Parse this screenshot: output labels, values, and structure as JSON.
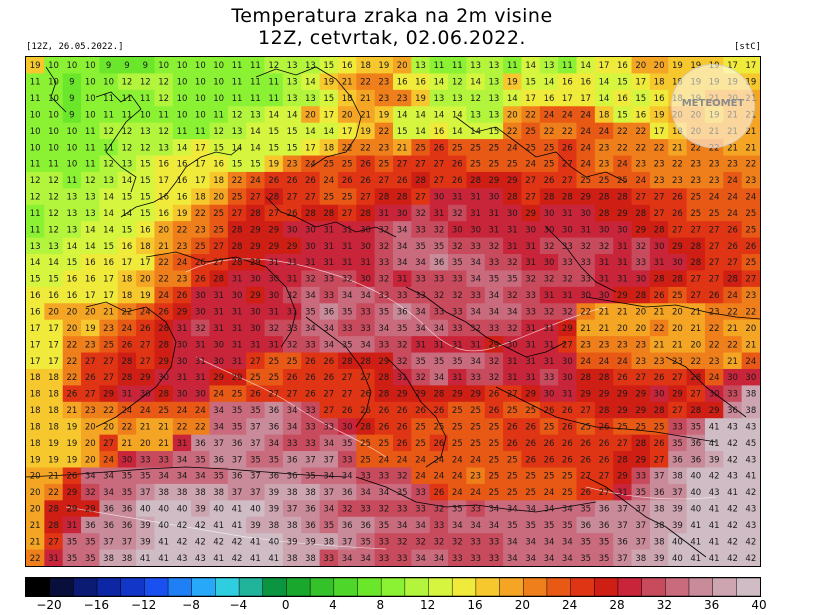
{
  "header": {
    "title_line1": "Temperatura zraka na 2m visine",
    "title_line2": "12Z, cetvrtak, 02.06.2022.",
    "run_label": "[12Z, 26.05.2022.]",
    "unit_label": "[stC]"
  },
  "watermark": {
    "text": "METEOMET"
  },
  "colorbar": {
    "colors": [
      "#000000",
      "#080f3a",
      "#0b1b73",
      "#0d27a4",
      "#1136c8",
      "#1a4ff0",
      "#1f7ff5",
      "#27a8f8",
      "#2fcde0",
      "#22b39b",
      "#0c9540",
      "#19a72d",
      "#35c12a",
      "#4fd62a",
      "#6ae72a",
      "#8bf233",
      "#b3f53d",
      "#d5f53f",
      "#f0ea3a",
      "#f7c72e",
      "#f5a524",
      "#ef7f1a",
      "#e85915",
      "#e03514",
      "#cf1e14",
      "#c9253a",
      "#c84a5d",
      "#c96a7d",
      "#c98a99",
      "#cca5b1",
      "#cfbcc4"
    ],
    "tick_labels": [
      "−20",
      "−16",
      "−12",
      "−8",
      "−4",
      "0",
      "4",
      "8",
      "12",
      "16",
      "20",
      "24",
      "28",
      "32",
      "36",
      "40"
    ]
  },
  "map_grid": {
    "rows": [
      "19 10 10 10 9 9 9 10 10 10 10 11 11 12 13 13 15 16 18 19 20 13 11 11 13 13 11 14 13 11 14 17 16 20 20 19 19 19 17 17",
      "11 10 9 10 10 12 12 12 10 10 10 11 11 11 13 14 19 21 22 23 16 16 14 12 14 13 19 15 14 16 16 14 15 17 18 18 19 19 19 19",
      "11 10 9 10 11 11 11 12 10 10 10 11 11 11 13 13 15 18 21 23 23 19 13 13 12 13 14 17 16 17 17 14 16 15 16 18 19 21 20 21",
      "10 10 9 10 11 11 10 11 10 10 11 12 13 14 14 20 17 20 21 19 14 14 14 14 13 13 20 22 24 24 24 18 15 16 19 20 20 19 21 21",
      "10 10 10 11 12 12 13 12 11 11 12 13 14 15 15 14 14 17 19 22 15 14 16 14 14 15 22 25 22 22 24 24 22 22 17 18 20 21 21 21",
      "10 10 10 11 11 12 12 13 14 17 15 14 14 15 15 17 18 22 22 23 21 25 26 25 25 25 24 25 25 26 24 23 22 22 22 21 22 22 21 21",
      "11 11 10 11 12 13 15 16 16 17 16 15 15 19 23 24 25 25 26 25 27 27 27 26 25 25 25 24 25 27 24 23 24 23 23 22 23 23 23 22",
      "12 12 11 12 13 14 15 17 16 17 18 22 24 26 26 26 24 26 26 27 26 28 27 26 28 29 29 27 26 27 25 25 25 24 23 23 23 23 24 23",
      "12 12 13 13 14 15 15 16 16 18 20 25 27 28 27 27 25 25 27 28 28 27 30 31 31 30 28 27 28 28 29 28 28 27 27 26 25 24 24 24",
      "11 12 13 13 14 14 15 16 19 22 25 27 28 27 26 28 28 27 28 31 30 32 31 32 31 31 30 29 30 31 30 28 29 28 27 26 25 25 24 25",
      "11 12 13 14 14 15 16 20 22 23 25 28 29 29 30 30 31 31 30 32 34 33 32 30 30 31 31 30 30 30 31 30 30 29 28 27 27 27 26 25",
      "13 13 14 14 15 16 18 21 23 25 27 28 29 29 29 30 31 31 30 32 34 35 35 32 33 32 31 31 32 33 32 32 31 32 30 29 28 27 26 26",
      "14 14 15 16 16 17 17 22 24 26 27 28 29 31 31 31 31 31 31 33 34 34 36 35 34 33 32 31 30 33 33 31 31 33 31 30 28 27 27 25",
      "15 15 16 16 17 18 20 22 23 26 28 31 30 30 31 32 33 32 30 32 31 33 33 33 34 35 35 32 32 32 33 31 31 30 28 28 27 27 28 27",
      "16 16 16 17 17 18 19 24 26 30 31 30 29 30 32 34 33 34 34 33 33 33 32 32 33 34 32 33 31 31 30 30 29 28 26 25 27 26 24 23",
      "16 20 20 20 21 22 24 26 29 30 31 31 30 31 31 35 36 35 33 35 36 34 33 33 34 34 34 33 32 32 22 21 21 20 21 20 21 23 22 22",
      "17 17 20 19 23 24 26 28 31 32 31 31 30 32 33 34 34 33 33 34 35 34 34 33 32 33 32 31 31 29 21 21 20 20 22 20 21 22 21 20",
      "17 17 22 23 25 26 27 28 30 31 30 31 31 31 32 33 34 35 34 33 32 31 31 31 31 29 30 31 31 27 23 23 23 23 21 21 20 22 22 21",
      "17 17 22 27 27 28 27 29 30 31 30 31 27 25 25 26 26 28 28 29 32 35 35 35 34 32 31 31 31 30 24 24 24 23 23 23 22 23 21 24",
      "18 18 22 26 27 28 29 30 31 31 29 29 25 25 26 26 26 27 27 28 31 32 34 31 33 32 31 31 33 30 28 28 26 27 26 27 28 24 30 30",
      "18 18 26 27 29 31 30 28 30 30 24 25 26 27 27 26 27 27 26 28 29 29 28 29 29 26 27 29 30 31 29 29 29 29 30 29 27 30 33 38",
      "18 18 21 23 22 24 24 25 24 24 34 35 35 36 34 33 27 26 26 26 26 26 26 25 25 26 25 25 26 26 27 28 29 29 28 27 28 29 36 38",
      "18 18 19 20 20 22 21 21 22 22 34 35 37 36 34 33 33 30 28 26 26 25 25 25 25 25 26 26 25 26 25 26 25 25 25 33 35 41 43 43",
      "18 19 19 20 27 21 20 21 31 36 37 36 37 34 33 33 34 35 25 25 26 25 26 25 25 25 26 26 26 26 26 26 27 28 26 35 36 41 42 45",
      "19 19 19 20 24 30 33 33 34 35 36 37 35 35 36 37 37 33 25 24 24 24 24 24 24 25 25 26 26 26 26 26 28 29 27 36 36 39 42 43",
      "20 21 26 34 34 35 35 34 34 34 35 36 37 36 36 35 34 34 33 33 32 24 24 24 23 25 25 25 25 25 27 27 29 33 37 38 40 42 43 41",
      "20 22 29 32 34 35 37 38 38 38 38 37 37 39 38 38 37 36 34 34 35 33 26 24 24 25 25 25 24 25 26 27 31 35 36 37 40 43 41 42",
      "20 28 29 29 36 36 40 40 40 39 40 41 40 39 37 36 34 32 33 32 33 33 32 35 33 34 34 34 34 34 35 36 37 37 38 39 40 41 42 43",
      "21 28 31 36 36 36 39 40 42 42 41 41 39 38 38 36 35 36 36 35 34 34 33 34 34 34 35 35 35 35 36 36 37 37 38 39 41 41 42 43",
      "21 27 35 35 37 37 39 41 42 42 42 42 41 40 39 39 38 37 35 33 32 32 32 32 33 33 34 34 34 34 35 35 36 37 38 40 41 41 42 42",
      "22 31 35 35 38 38 41 41 43 43 41 42 41 41 38 38 33 34 34 33 33 34 34 33 33 33 34 34 34 34 35 35 37 38 39 40 41 41 42 42"
    ]
  }
}
